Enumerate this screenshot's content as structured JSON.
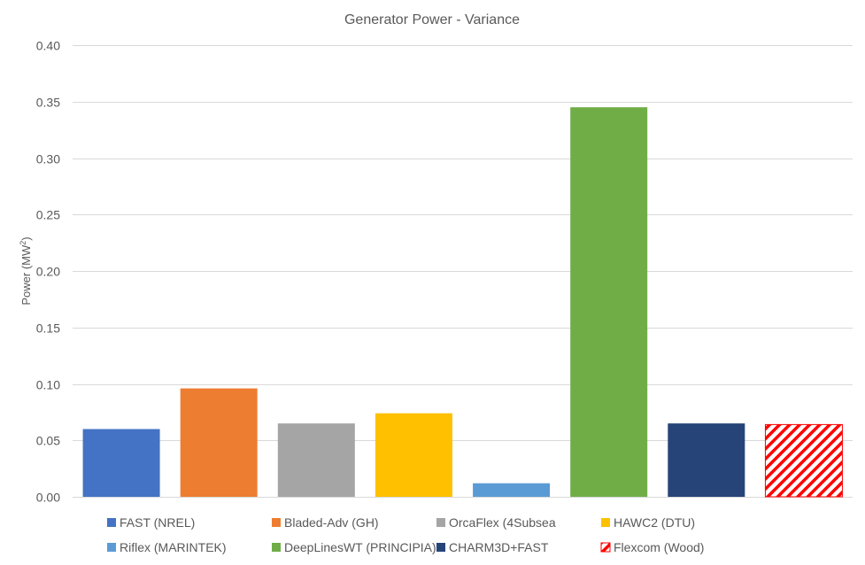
{
  "chart_data": {
    "type": "bar",
    "title": "Generator Power - Variance",
    "ylabel": "Power (MW",
    "ylabel_sup": "2",
    "ylabel_suffix": ")",
    "xlabel": "",
    "ylim": [
      0,
      0.4
    ],
    "yticks": [
      "0.00",
      "0.05",
      "0.10",
      "0.15",
      "0.20",
      "0.25",
      "0.30",
      "0.35",
      "0.40"
    ],
    "grid": true,
    "legend_position": "bottom",
    "series": [
      {
        "name": "FAST (NREL)",
        "value": 0.06,
        "color": "#4472C4",
        "pattern": "solid"
      },
      {
        "name": "Bladed-Adv (GH)",
        "value": 0.096,
        "color": "#ED7D31",
        "pattern": "solid"
      },
      {
        "name": "OrcaFlex (4Subsea",
        "value": 0.065,
        "color": "#A5A5A5",
        "pattern": "solid"
      },
      {
        "name": "HAWC2 (DTU)",
        "value": 0.074,
        "color": "#FFC000",
        "pattern": "solid"
      },
      {
        "name": "Riflex (MARINTEK)",
        "value": 0.012,
        "color": "#5B9BD5",
        "pattern": "solid"
      },
      {
        "name": "DeepLinesWT (PRINCIPIA)",
        "value": 0.345,
        "color": "#70AD47",
        "pattern": "solid"
      },
      {
        "name": "CHARM3D+FAST",
        "value": 0.065,
        "color": "#264478",
        "pattern": "solid"
      },
      {
        "name": "Flexcom (Wood)",
        "value": 0.064,
        "color": "#FF0000",
        "pattern": "hatch"
      }
    ]
  }
}
